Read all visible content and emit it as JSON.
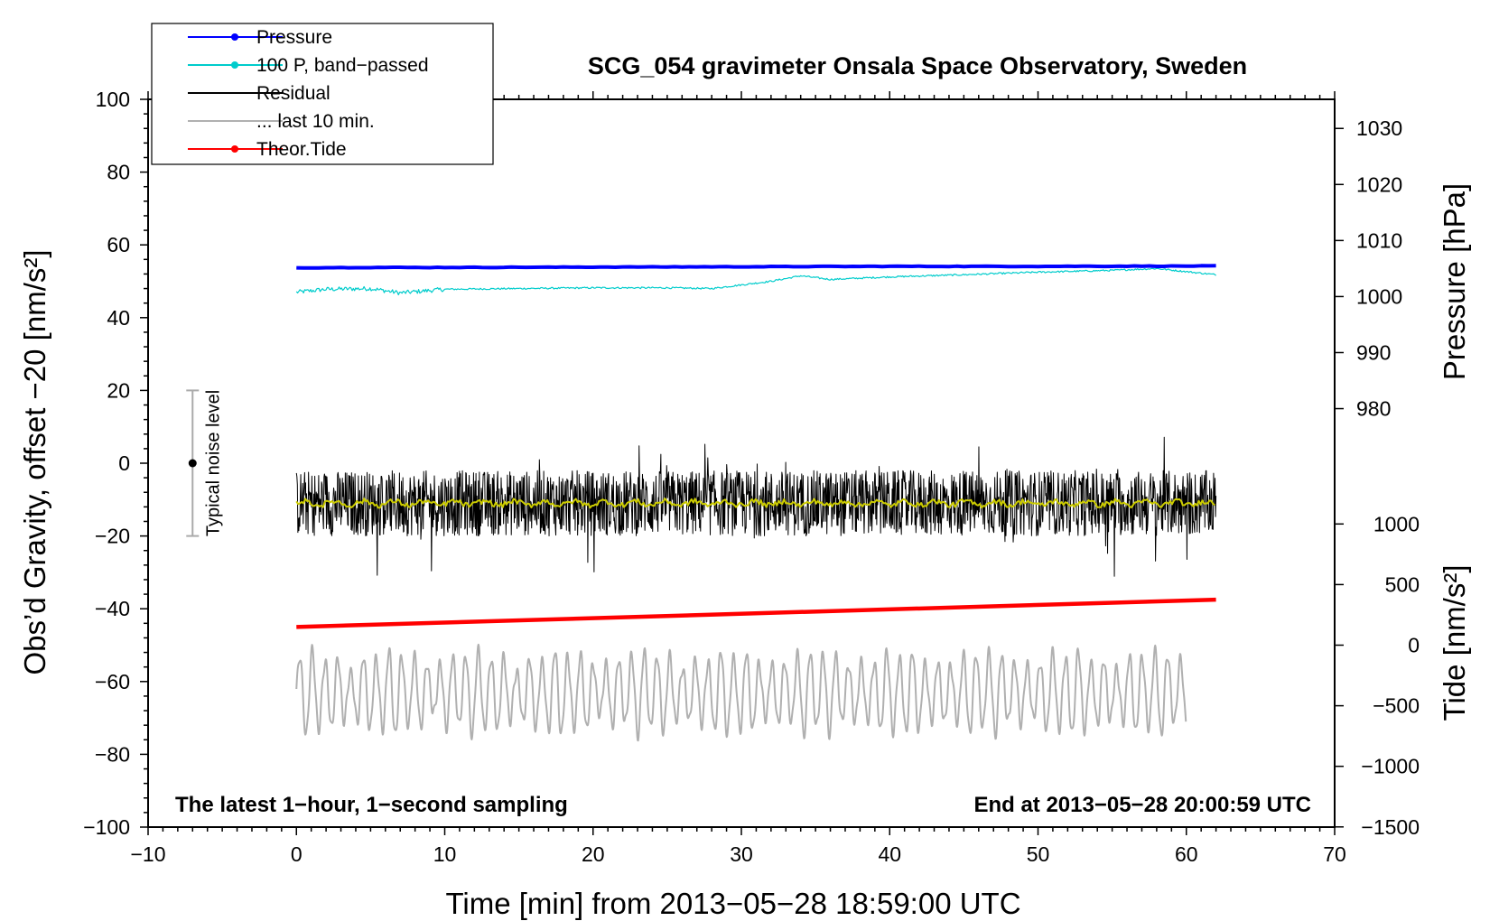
{
  "chart_data": {
    "type": "line",
    "title": "SCG_054 gravimeter Onsala Space Observatory, Sweden",
    "xlabel": "Time [min] from 2013−05−28 18:59:00 UTC",
    "ylabel": "Obs’d Gravity, offset −20 [nm/s²]",
    "right_ylabel_top": "Pressure [hPa]",
    "right_ylabel_bottom": "Tide [nm/s²]",
    "xlim": [
      -10,
      70
    ],
    "ylim": [
      -100,
      100
    ],
    "xticks": [
      -10,
      0,
      10,
      20,
      30,
      40,
      50,
      60,
      70
    ],
    "yticks": [
      -100,
      -80,
      -60,
      -40,
      -20,
      0,
      20,
      40,
      60,
      80,
      100
    ],
    "x_tick_labels": [
      "−10",
      "0",
      "10",
      "20",
      "30",
      "40",
      "50",
      "60",
      "70"
    ],
    "y_tick_labels": [
      "−100",
      "−80",
      "−60",
      "−40",
      "−20",
      "0",
      "20",
      "40",
      "60",
      "80",
      "100"
    ],
    "pressure_axis": {
      "ticks": [
        980,
        990,
        1000,
        1010,
        1020,
        1030
      ],
      "labels": [
        "980",
        "990",
        "1000",
        "1010",
        "1020",
        "1030"
      ],
      "gravity_at_980": 15,
      "gravity_per_hPa": 1.54
    },
    "tide_axis": {
      "ticks": [
        -1500,
        -1000,
        -500,
        0,
        500,
        1000
      ],
      "labels": [
        "−1500",
        "−1000",
        "−500",
        "0",
        "500",
        "1000"
      ],
      "gravity_at_zero": -50,
      "gravity_per_unit": 0.0333
    },
    "noise_bar": {
      "label": "Typical noise level",
      "x": -7,
      "center": 0,
      "low": -20,
      "high": 20
    },
    "annotations": {
      "bottom_left": "The latest 1−hour, 1−second sampling",
      "bottom_right": "End at 2013−05−28 20:00:59 UTC"
    },
    "legend": {
      "placement": "top-left",
      "entries": [
        {
          "label": "Pressure",
          "color": "#0000ff",
          "marker": true
        },
        {
          "label": "100 P, band−passed",
          "color": "#00cccc",
          "marker": true
        },
        {
          "label": "Residual",
          "color": "#000000",
          "marker": false
        },
        {
          "label": "... last 10 min.",
          "color": "#b0b0b0",
          "marker": false
        },
        {
          "label": "Theor.Tide",
          "color": "#ff0000",
          "marker": true
        }
      ]
    },
    "series": [
      {
        "name": "Pressure",
        "color": "#0000ff",
        "x": [
          0,
          5,
          10,
          20,
          30,
          40,
          50,
          62
        ],
        "y": [
          53.7,
          53.8,
          53.8,
          53.9,
          54.0,
          54.1,
          54.1,
          54.2
        ]
      },
      {
        "name": "100 P, band−passed",
        "color": "#00cccc",
        "x": [
          0,
          2,
          5,
          7,
          10,
          15,
          20,
          25,
          28,
          30,
          32,
          34,
          36,
          40,
          45,
          50,
          55,
          58,
          62
        ],
        "y": [
          47.0,
          47.8,
          48.0,
          46.8,
          47.8,
          48.0,
          48.2,
          48.2,
          48.0,
          49.0,
          50.0,
          51.5,
          50.5,
          51.2,
          51.8,
          52.5,
          53.0,
          53.5,
          51.8
        ]
      },
      {
        "name": "Residual",
        "color": "#000000",
        "x_start": 0,
        "x_end": 62,
        "mean": -11,
        "typical_range": [
          -30,
          8
        ]
      },
      {
        "name": "Residual (smoothed)",
        "color": "#cccc00",
        "x_start": 0,
        "x_end": 62,
        "mean": -11
      },
      {
        "name": "Theor.Tide",
        "color": "#ff0000",
        "x": [
          0,
          62
        ],
        "y": [
          -45,
          -37.5
        ]
      },
      {
        "name": "... last 10 min.",
        "color": "#b0b0b0",
        "x_start": 0,
        "x_end": 60,
        "mean": -63,
        "typical_range": [
          -77,
          -48
        ]
      }
    ]
  }
}
